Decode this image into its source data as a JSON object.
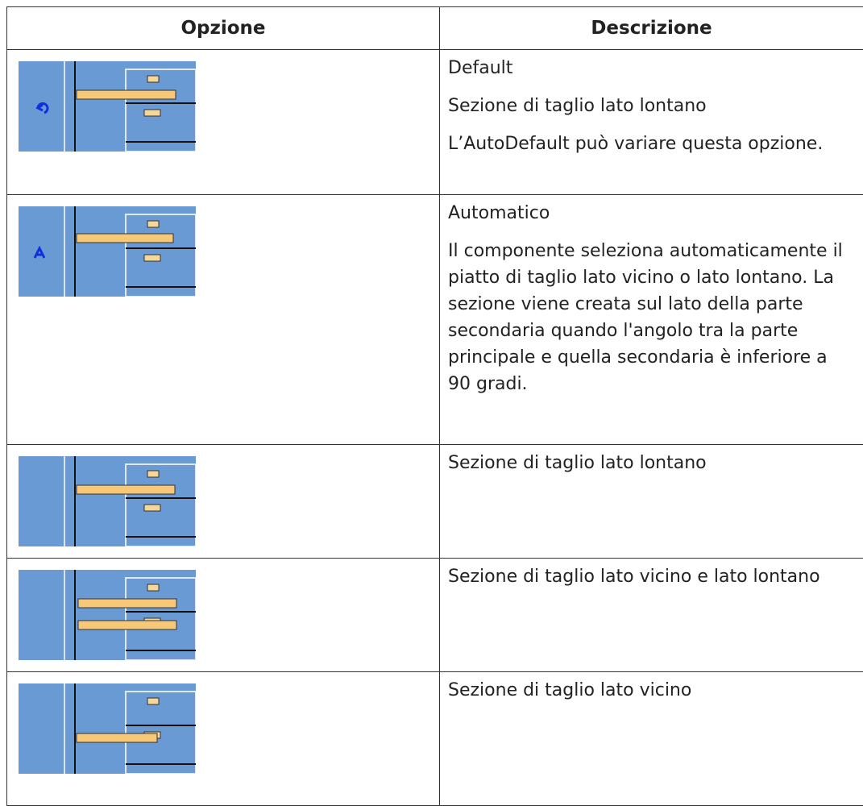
{
  "header": {
    "columns": [
      "Opzione",
      "Descrizione"
    ]
  },
  "table": {
    "rows": [
      [
        "Default",
        "Sezione di taglio lato lontano",
        "L’AutoDefault può variare questa opzione."
      ],
      [
        "Automatico",
        "Il componente seleziona automaticamente il piatto di taglio lato vicino o lato lontano. La sezione viene creata sul lato della parte secondaria quando l'angolo tra la parte principale e quella secondaria è inferiore a 90 gradi."
      ],
      [
        "Sezione di taglio lato lontano"
      ],
      [
        "Sezione di taglio lato vicino e lato lontano"
      ],
      [
        "Sezione di taglio lato vicino"
      ]
    ]
  }
}
